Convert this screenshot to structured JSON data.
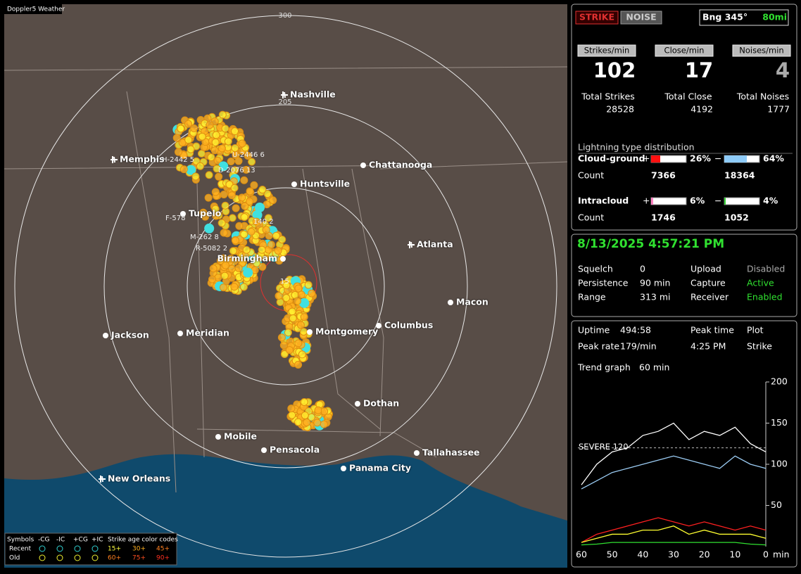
{
  "map": {
    "brand": "Doppler5 Weather",
    "ring_labels": [
      "300",
      "205"
    ],
    "cities": [
      "Nashville",
      "Memphis",
      "Chattanooga",
      "Huntsville",
      "Tupelo",
      "Atlanta",
      "Birmingham",
      "Macon",
      "Montgomery",
      "Columbus",
      "Jackson",
      "Meridian",
      "Dothan",
      "Mobile",
      "Pensacola",
      "Tallahassee",
      "Panama City",
      "New Orleans"
    ],
    "storm_tags": [
      "H-2442 5",
      "U-2446 6",
      "D-2076 13",
      "F-578",
      "M-262 8",
      "R-5082 2",
      "140 2",
      "15"
    ],
    "legend": {
      "header": [
        "Symbols",
        "-CG",
        "-IC",
        "+CG",
        "+IC",
        "Strike age color codes"
      ],
      "recent": "Recent",
      "old": "Old",
      "recent_ages": [
        "15+",
        "30+",
        "45+"
      ],
      "old_ages": [
        "60+",
        "75+",
        "90+"
      ]
    }
  },
  "status": {
    "strike_button": "STRIKE",
    "noise_button": "NOISE",
    "bearing": "Bng 345°",
    "distance": "80mi",
    "rate_headers": [
      "Strikes/min",
      "Close/min",
      "Noises/min"
    ],
    "rates": [
      102,
      17,
      4
    ],
    "total_labels": [
      "Total Strikes",
      "Total Close",
      "Total Noises"
    ],
    "totals": [
      28528,
      4192,
      1777
    ],
    "distribution_title": "Lightning type distribution",
    "rows": [
      {
        "label": "Cloud-ground",
        "plus": "+",
        "minus": "−",
        "plus_pct": {
          "value": 26,
          "label": "26%"
        },
        "minus_pct": {
          "value": 64,
          "label": "64%"
        },
        "count_label": "Count",
        "plus_count": 7366,
        "minus_count": 18364
      },
      {
        "label": "Intracloud",
        "plus": "+",
        "minus": "−",
        "plus_pct": {
          "value": 6,
          "label": "6%"
        },
        "minus_pct": {
          "value": 4,
          "label": "4%"
        },
        "count_label": "Count",
        "plus_count": 1746,
        "minus_count": 1052
      }
    ]
  },
  "settings": {
    "datetime": "8/13/2025 4:57:21 PM",
    "items": [
      [
        "Squelch",
        "0"
      ],
      [
        "Persistence",
        "90 min"
      ],
      [
        "Range",
        "313 mi"
      ]
    ],
    "items2": [
      [
        "Upload",
        "Disabled"
      ],
      [
        "Capture",
        "Active"
      ],
      [
        "Receiver",
        "Enabled"
      ]
    ]
  },
  "stats": {
    "uptime_label": "Uptime",
    "uptime": "494:58",
    "peak_time_label": "Peak time",
    "peak_time": "4:25 PM",
    "plot_label": "Plot",
    "peak_rate_label": "Peak rate",
    "peak_rate": "179/min",
    "plot": "Strike",
    "trend_label": "Trend graph",
    "trend_window": "60 min"
  },
  "chart_data": {
    "type": "line",
    "x": [
      60,
      55,
      50,
      45,
      40,
      35,
      30,
      25,
      20,
      15,
      10,
      5,
      0
    ],
    "xlim": [
      60,
      0
    ],
    "xticks": [
      60,
      50,
      40,
      30,
      20,
      10,
      0
    ],
    "x_label": "min",
    "ylim": [
      0,
      200
    ],
    "yticks": [
      50,
      100,
      150,
      200
    ],
    "threshold": {
      "value": 120,
      "label": "SEVERE 120"
    },
    "series": [
      {
        "color": "#ffffff",
        "values": [
          75,
          100,
          115,
          120,
          135,
          140,
          150,
          130,
          140,
          135,
          145,
          125,
          115
        ]
      },
      {
        "color": "#9ccdf5",
        "values": [
          70,
          80,
          90,
          95,
          100,
          105,
          110,
          105,
          100,
          95,
          110,
          100,
          95
        ]
      },
      {
        "color": "#ff2020",
        "values": [
          5,
          15,
          20,
          25,
          30,
          35,
          30,
          25,
          30,
          25,
          20,
          25,
          20
        ]
      },
      {
        "color": "#ffff30",
        "values": [
          5,
          10,
          15,
          15,
          20,
          20,
          25,
          15,
          20,
          15,
          15,
          15,
          10
        ]
      },
      {
        "color": "#30e030",
        "values": [
          2,
          3,
          5,
          5,
          5,
          5,
          5,
          5,
          5,
          5,
          5,
          3,
          2
        ]
      }
    ]
  }
}
